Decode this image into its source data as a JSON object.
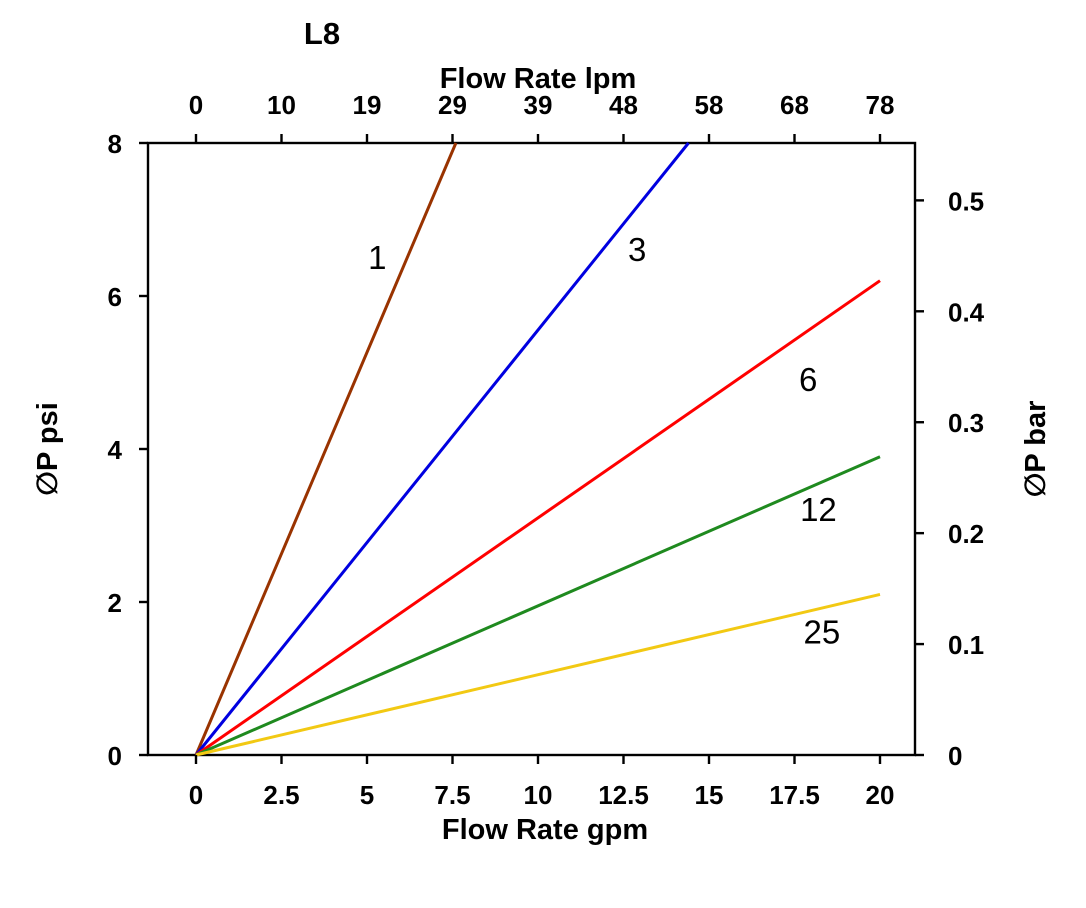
{
  "page": {
    "background": "#ffffff"
  },
  "chart_data": {
    "type": "line",
    "title": "L8",
    "grid": false,
    "legend": "inline-labels",
    "axis_color": "#000000",
    "text_color": "#000000",
    "axes": {
      "x_bottom": {
        "label": "Flow Rate gpm",
        "ticks": [
          0,
          2.5,
          5,
          7.5,
          10,
          12.5,
          15,
          17.5,
          20
        ],
        "range": [
          0,
          20
        ]
      },
      "x_top": {
        "label": "Flow Rate lpm",
        "tick_labels": [
          "0",
          "10",
          "19",
          "29",
          "39",
          "48",
          "58",
          "68",
          "78"
        ],
        "tick_positions_gpm": [
          0,
          2.5,
          5,
          7.5,
          10,
          12.5,
          15,
          17.5,
          20
        ]
      },
      "y_left": {
        "label": "∅P psi",
        "ticks": [
          0,
          2,
          4,
          6,
          8
        ],
        "range": [
          0,
          8
        ]
      },
      "y_right": {
        "label": "∅P bar",
        "ticks": [
          0,
          0.1,
          0.2,
          0.3,
          0.4,
          0.5
        ],
        "psi_per_bar": 14.5
      }
    },
    "series": [
      {
        "name": "1",
        "color": "#993300",
        "points": [
          [
            0,
            0
          ],
          [
            7.6,
            8
          ]
        ],
        "label_pos": [
          5.3,
          6.5
        ]
      },
      {
        "name": "3",
        "color": "#0000E0",
        "points": [
          [
            0,
            0
          ],
          [
            14.4,
            8
          ]
        ],
        "label_pos": [
          12.9,
          6.6
        ]
      },
      {
        "name": "6",
        "color": "#FF0000",
        "points": [
          [
            0,
            0
          ],
          [
            20,
            6.2
          ]
        ],
        "label_pos": [
          17.9,
          4.9
        ]
      },
      {
        "name": "12",
        "color": "#1F8A1F",
        "points": [
          [
            0,
            0
          ],
          [
            20,
            3.9
          ]
        ],
        "label_pos": [
          18.2,
          3.2
        ]
      },
      {
        "name": "25",
        "color": "#F2C913",
        "points": [
          [
            0,
            0
          ],
          [
            20,
            2.1
          ]
        ],
        "label_pos": [
          18.3,
          1.6
        ]
      }
    ]
  }
}
